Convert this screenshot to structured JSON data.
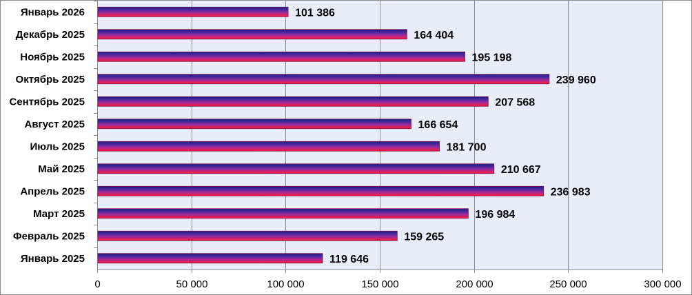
{
  "chart_data": {
    "type": "bar",
    "orientation": "horizontal",
    "categories": [
      "Январь 2026",
      "Декабрь 2025",
      "Ноябрь 2025",
      "Октябрь 2025",
      "Сентябрь 2025",
      "Август 2025",
      "Июль 2025",
      "Май 2025",
      "Апрель 2025",
      "Март 2025",
      "Февраль 2025",
      "Январь 2025"
    ],
    "values": [
      101386,
      164404,
      195198,
      239960,
      207568,
      166654,
      181700,
      210667,
      236983,
      196984,
      159265,
      119646
    ],
    "value_labels": [
      "101 386",
      "164 404",
      "195 198",
      "239 960",
      "207 568",
      "166 654",
      "181 700",
      "210 667",
      "236 983",
      "196 984",
      "159 265",
      "119 646"
    ],
    "xlim": [
      0,
      300000
    ],
    "x_ticks": [
      0,
      50000,
      100000,
      150000,
      200000,
      250000,
      300000
    ],
    "x_tick_labels": [
      "0",
      "50 000",
      "100 000",
      "150 000",
      "200 000",
      "250 000",
      "300 000"
    ],
    "grid": "vertical",
    "legend": "none",
    "colors": {
      "plot_background": "#e9edf7",
      "gridline": "#8c8c8c",
      "bar_gradient": [
        "#1a1a80",
        "#4b2aa0",
        "#a02a9a",
        "#e0205a",
        "#f01838"
      ]
    }
  }
}
